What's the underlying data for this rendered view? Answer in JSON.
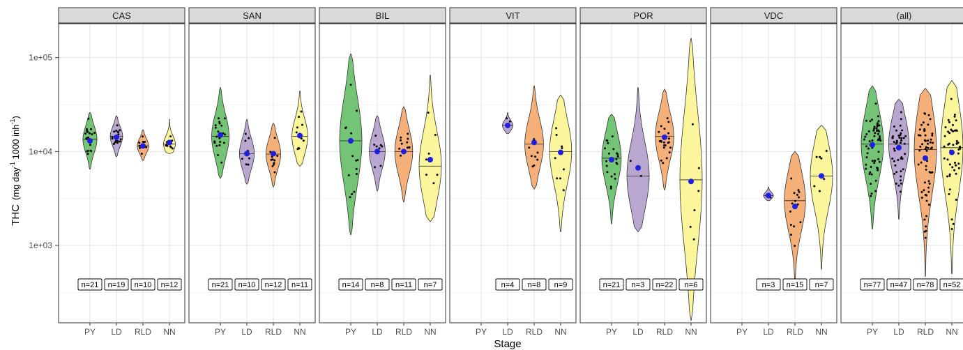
{
  "chart_data": {
    "type": "violin",
    "xlabel": "Stage",
    "ylabel_main": "THC",
    "ylabel_unit": "(mg day",
    "ylabel_sup1": "-1",
    "ylabel_mid": " 1000 inh",
    "ylabel_sup2": "-1",
    "ylabel_end": ")",
    "y_scale": "log10",
    "ylim": [
      150,
      230000
    ],
    "y_ticks": [
      1000,
      10000,
      100000
    ],
    "y_tick_labels": [
      "1e+03",
      "1e+04",
      "1e+05"
    ],
    "categories": [
      "PY",
      "LD",
      "RLD",
      "NN"
    ],
    "category_colors": {
      "PY": "#74c476",
      "LD": "#b9a7d0",
      "RLD": "#f5b07a",
      "NN": "#fbf59c"
    },
    "grid": true,
    "panels": [
      {
        "name": "CAS",
        "groups": [
          {
            "stage": "PY",
            "n_label": "n=21",
            "min": 6500,
            "max": 26000,
            "median": 13500,
            "mean": 13000
          },
          {
            "stage": "LD",
            "n_label": "n=19",
            "min": 8800,
            "max": 24000,
            "median": 14500,
            "mean": 14200
          },
          {
            "stage": "RLD",
            "n_label": "n=10",
            "min": 8000,
            "max": 17000,
            "median": 11500,
            "mean": 11500
          },
          {
            "stage": "NN",
            "n_label": "n=12",
            "min": 9500,
            "max": 22000,
            "median": 12000,
            "mean": 12500
          }
        ]
      },
      {
        "name": "SAN",
        "groups": [
          {
            "stage": "PY",
            "n_label": "n=21",
            "min": 5200,
            "max": 48000,
            "median": 14500,
            "mean": 15000
          },
          {
            "stage": "LD",
            "n_label": "n=10",
            "min": 4500,
            "max": 22000,
            "median": 9500,
            "mean": 9500
          },
          {
            "stage": "RLD",
            "n_label": "n=12",
            "min": 4200,
            "max": 20000,
            "median": 9400,
            "mean": 9500
          },
          {
            "stage": "NN",
            "n_label": "n=11",
            "min": 7000,
            "max": 44000,
            "median": 14500,
            "mean": 14800
          }
        ]
      },
      {
        "name": "BIL",
        "groups": [
          {
            "stage": "PY",
            "n_label": "n=14",
            "min": 1300,
            "max": 110000,
            "median": 13000,
            "mean": 13000
          },
          {
            "stage": "LD",
            "n_label": "n=8",
            "min": 3800,
            "max": 24000,
            "median": 10000,
            "mean": 10000
          },
          {
            "stage": "RLD",
            "n_label": "n=11",
            "min": 2900,
            "max": 30000,
            "median": 10000,
            "mean": 10000
          },
          {
            "stage": "NN",
            "n_label": "n=7",
            "min": 1800,
            "max": 65000,
            "median": 7000,
            "mean": 8200
          }
        ]
      },
      {
        "name": "VIT",
        "groups": [
          {
            "stage": "LD",
            "n_label": "n=4",
            "min": 15500,
            "max": 26000,
            "median": 19000,
            "mean": 19000
          },
          {
            "stage": "RLD",
            "n_label": "n=8",
            "min": 4000,
            "max": 50000,
            "median": 12000,
            "mean": 12500
          },
          {
            "stage": "NN",
            "n_label": "n=9",
            "min": 1400,
            "max": 40000,
            "median": 10000,
            "mean": 9800
          }
        ]
      },
      {
        "name": "POR",
        "groups": [
          {
            "stage": "PY",
            "n_label": "n=21",
            "min": 1700,
            "max": 25000,
            "median": 8500,
            "mean": 8200
          },
          {
            "stage": "LD",
            "n_label": "n=3",
            "min": 1400,
            "max": 48000,
            "median": 5500,
            "mean": 6700
          },
          {
            "stage": "RLD",
            "n_label": "n=22",
            "min": 3900,
            "max": 46000,
            "median": 14500,
            "mean": 14200
          },
          {
            "stage": "NN",
            "n_label": "n=6",
            "min": 160,
            "max": 160000,
            "median": 5000,
            "mean": 4800
          }
        ]
      },
      {
        "name": "VDC",
        "groups": [
          {
            "stage": "LD",
            "n_label": "n=3",
            "min": 3000,
            "max": 4200,
            "median": 3400,
            "mean": 3400
          },
          {
            "stage": "RLD",
            "n_label": "n=15",
            "min": 430,
            "max": 10000,
            "median": 3000,
            "mean": 2600
          },
          {
            "stage": "NN",
            "n_label": "n=7",
            "min": 560,
            "max": 19000,
            "median": 5500,
            "mean": 5500
          }
        ]
      },
      {
        "name": "(all)",
        "groups": [
          {
            "stage": "PY",
            "n_label": "n=77",
            "min": 1500,
            "max": 50000,
            "median": 12000,
            "mean": 11800
          },
          {
            "stage": "LD",
            "n_label": "n=47",
            "min": 1900,
            "max": 36000,
            "median": 12000,
            "mean": 11000
          },
          {
            "stage": "RLD",
            "n_label": "n=78",
            "min": 470,
            "max": 47000,
            "median": 10500,
            "mean": 8500
          },
          {
            "stage": "NN",
            "n_label": "n=52",
            "min": 500,
            "max": 57000,
            "median": 11000,
            "mean": 9800
          }
        ]
      }
    ]
  }
}
